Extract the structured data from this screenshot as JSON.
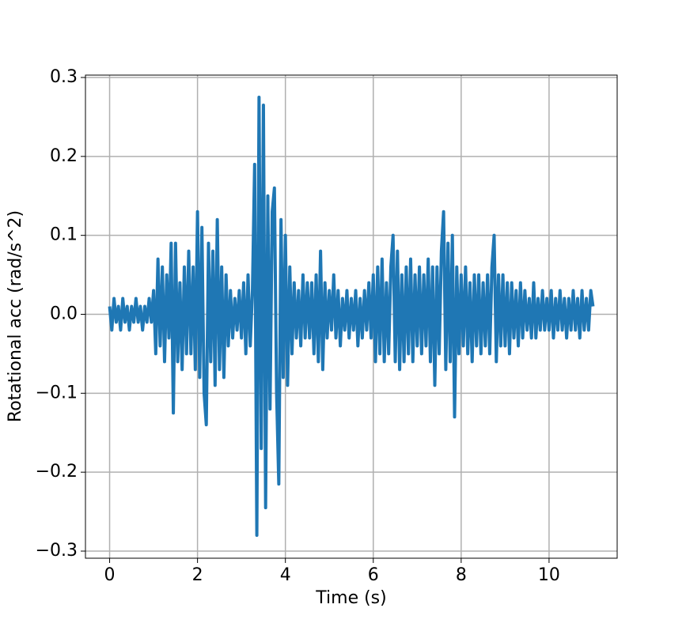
{
  "chart_data": {
    "type": "line",
    "xlabel": "Time (s)",
    "ylabel": "Rotational acc (rad/s^2)",
    "xlim": [
      -0.55,
      11.55
    ],
    "ylim": [
      -0.309,
      0.303
    ],
    "xticks": [
      0,
      2,
      4,
      6,
      8,
      10
    ],
    "yticks": [
      {
        "value": -0.3,
        "label": "−0.3"
      },
      {
        "value": -0.2,
        "label": "−0.2"
      },
      {
        "value": -0.1,
        "label": "−0.1"
      },
      {
        "value": 0,
        "label": "0.0"
      },
      0.1,
      0.2,
      0.3
    ],
    "grid": true,
    "series": [
      {
        "color": "#1f77b4",
        "x": [
          0,
          0.05,
          0.1,
          0.15,
          0.2,
          0.25,
          0.3,
          0.35,
          0.4,
          0.45,
          0.5,
          0.55,
          0.6,
          0.65,
          0.7,
          0.75,
          0.8,
          0.85,
          0.9,
          0.95,
          1,
          1.05,
          1.1,
          1.15,
          1.2,
          1.25,
          1.3,
          1.35,
          1.4,
          1.45,
          1.5,
          1.55,
          1.6,
          1.65,
          1.7,
          1.75,
          1.8,
          1.85,
          1.9,
          1.95,
          2,
          2.05,
          2.1,
          2.15,
          2.2,
          2.25,
          2.3,
          2.35,
          2.4,
          2.45,
          2.5,
          2.55,
          2.6,
          2.65,
          2.7,
          2.75,
          2.8,
          2.85,
          2.9,
          2.95,
          3,
          3.05,
          3.1,
          3.15,
          3.2,
          3.25,
          3.3,
          3.35,
          3.4,
          3.45,
          3.5,
          3.55,
          3.6,
          3.65,
          3.7,
          3.75,
          3.8,
          3.85,
          3.9,
          3.95,
          4,
          4.05,
          4.1,
          4.15,
          4.2,
          4.25,
          4.3,
          4.35,
          4.4,
          4.45,
          4.5,
          4.55,
          4.6,
          4.65,
          4.7,
          4.75,
          4.8,
          4.85,
          4.9,
          4.95,
          5,
          5.05,
          5.1,
          5.15,
          5.2,
          5.25,
          5.3,
          5.35,
          5.4,
          5.45,
          5.5,
          5.55,
          5.6,
          5.65,
          5.7,
          5.75,
          5.8,
          5.85,
          5.9,
          5.95,
          6,
          6.05,
          6.1,
          6.15,
          6.2,
          6.25,
          6.3,
          6.35,
          6.4,
          6.45,
          6.5,
          6.55,
          6.6,
          6.65,
          6.7,
          6.75,
          6.8,
          6.85,
          6.9,
          6.95,
          7,
          7.05,
          7.1,
          7.15,
          7.2,
          7.25,
          7.3,
          7.35,
          7.4,
          7.45,
          7.5,
          7.55,
          7.6,
          7.65,
          7.7,
          7.75,
          7.8,
          7.85,
          7.9,
          7.95,
          8,
          8.05,
          8.1,
          8.15,
          8.2,
          8.25,
          8.3,
          8.35,
          8.4,
          8.45,
          8.5,
          8.55,
          8.6,
          8.65,
          8.7,
          8.75,
          8.8,
          8.85,
          8.9,
          8.95,
          9,
          9.05,
          9.1,
          9.15,
          9.2,
          9.25,
          9.3,
          9.35,
          9.4,
          9.45,
          9.5,
          9.55,
          9.6,
          9.65,
          9.7,
          9.75,
          9.8,
          9.85,
          9.9,
          9.95,
          10,
          10.05,
          10.1,
          10.15,
          10.2,
          10.25,
          10.3,
          10.35,
          10.4,
          10.45,
          10.5,
          10.55,
          10.6,
          10.65,
          10.7,
          10.75,
          10.8,
          10.85,
          10.9,
          10.95,
          11
        ],
        "values": [
          0.01,
          -0.02,
          0.02,
          -0.01,
          0.01,
          -0.02,
          0.02,
          -0.01,
          0.01,
          -0.02,
          0.01,
          -0.01,
          0.02,
          -0.01,
          0.01,
          -0.02,
          0.01,
          -0.01,
          0.02,
          -0.01,
          0.03,
          -0.05,
          0.07,
          -0.04,
          0.06,
          -0.06,
          0.05,
          -0.03,
          0.09,
          -0.125,
          0.09,
          -0.06,
          0.04,
          -0.07,
          0.06,
          -0.05,
          0.08,
          -0.05,
          0.06,
          -0.07,
          0.13,
          -0.08,
          0.11,
          -0.1,
          -0.14,
          0.09,
          -0.06,
          0.08,
          -0.09,
          0.12,
          -0.07,
          0.06,
          -0.08,
          0.05,
          -0.04,
          0.03,
          -0.03,
          0.02,
          -0.02,
          0.03,
          -0.03,
          0.04,
          -0.05,
          0.05,
          -0.04,
          0.03,
          0.19,
          -0.28,
          0.275,
          -0.17,
          0.265,
          -0.245,
          0.15,
          -0.12,
          0.13,
          0.16,
          -0.1,
          -0.215,
          0.12,
          -0.08,
          0.1,
          -0.09,
          0.06,
          -0.05,
          0.04,
          -0.03,
          0.03,
          -0.04,
          0.05,
          -0.03,
          0.04,
          -0.03,
          0.04,
          -0.05,
          0.05,
          -0.06,
          0.08,
          -0.07,
          0.04,
          -0.03,
          0.03,
          -0.02,
          0.05,
          -0.03,
          0.03,
          -0.04,
          0.02,
          -0.02,
          0.03,
          -0.03,
          0.02,
          -0.02,
          0.03,
          -0.04,
          0.02,
          -0.03,
          0.03,
          -0.02,
          0.04,
          -0.03,
          0.05,
          -0.06,
          0.06,
          -0.05,
          0.07,
          -0.06,
          0.04,
          -0.05,
          0.06,
          0.1,
          -0.06,
          0.08,
          -0.07,
          0.05,
          -0.06,
          0.06,
          -0.05,
          0.07,
          -0.06,
          0.05,
          -0.04,
          0.06,
          -0.05,
          0.05,
          -0.04,
          0.07,
          -0.06,
          0.06,
          -0.09,
          0.06,
          -0.05,
          0.08,
          0.13,
          -0.07,
          0.09,
          -0.06,
          0.1,
          -0.13,
          0.06,
          -0.05,
          0.05,
          -0.04,
          0.06,
          -0.05,
          0.04,
          -0.06,
          0.05,
          -0.04,
          0.05,
          -0.05,
          0.04,
          -0.04,
          0.05,
          -0.05,
          0.06,
          0.1,
          -0.06,
          0.05,
          -0.04,
          0.05,
          -0.04,
          0.04,
          -0.05,
          0.04,
          -0.03,
          0.03,
          -0.04,
          0.04,
          -0.03,
          0.03,
          -0.02,
          0.02,
          -0.03,
          0.04,
          -0.03,
          0.02,
          -0.02,
          0.03,
          -0.02,
          0.02,
          -0.02,
          0.03,
          -0.03,
          0.02,
          -0.02,
          0.03,
          -0.02,
          0.02,
          -0.03,
          0.02,
          -0.02,
          0.03,
          -0.02,
          0.02,
          -0.03,
          0.03,
          -0.02,
          0.02,
          -0.02,
          0.03,
          0.01
        ]
      }
    ]
  }
}
